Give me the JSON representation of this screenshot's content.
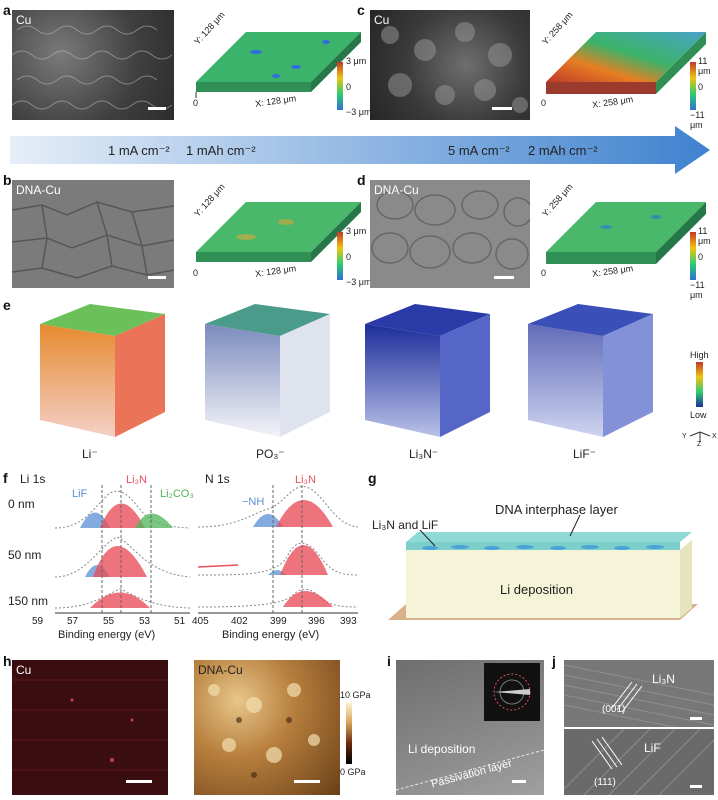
{
  "panels": {
    "a": {
      "label": "a",
      "sem_label": "Cu",
      "y_label": "Y: 128 μm",
      "x_label": "X: 128 μm",
      "origin": "0",
      "scale_max": "3 μm",
      "scale_mid": "0",
      "scale_min": "−3 μm"
    },
    "b": {
      "label": "b",
      "sem_label": "DNA-Cu",
      "y_label": "Y: 128 μm",
      "x_label": "X: 128 μm",
      "origin": "0",
      "scale_max": "3 μm",
      "scale_mid": "0",
      "scale_min": "−3 μm"
    },
    "c": {
      "label": "c",
      "sem_label": "Cu",
      "y_label": "Y: 258 μm",
      "x_label": "X: 258 μm",
      "origin": "0",
      "scale_max": "11 μm",
      "scale_mid": "0",
      "scale_min": "−11 μm"
    },
    "d": {
      "label": "d",
      "sem_label": "DNA-Cu",
      "y_label": "Y: 258 μm",
      "x_label": "X: 258 μm",
      "origin": "0",
      "scale_max": "11 μm",
      "scale_mid": "0",
      "scale_min": "−11 μm"
    },
    "e": {
      "label": "e",
      "cubes": [
        "Li⁻",
        "PO₃⁻",
        "Li₃N⁻",
        "LiF⁻"
      ],
      "scale_high": "High",
      "scale_low": "Low",
      "axes": {
        "y": "Y",
        "z": "Z",
        "x": "X"
      }
    },
    "f": {
      "label": "f",
      "li_title": "Li 1s",
      "n_title": "N 1s",
      "depths": [
        "0 nm",
        "50 nm",
        "150 nm"
      ],
      "li_peaks": {
        "lif": "LiF",
        "li3n": "Li₃N",
        "li2co3": "Li₂CO₃"
      },
      "n_peaks": {
        "nh": "−NH",
        "li3n": "Li₃N"
      },
      "li_ticks": [
        "59",
        "57",
        "55",
        "53",
        "51"
      ],
      "n_ticks": [
        "405",
        "402",
        "399",
        "396",
        "393"
      ],
      "xlabel": "Binding energy (eV)"
    },
    "g": {
      "label": "g",
      "dna": "DNA interphase layer",
      "li3n_lif": "Li₃N and LiF",
      "li_dep": "Li deposition"
    },
    "h": {
      "label": "h",
      "left": "Cu",
      "right": "DNA-Cu",
      "scale_max": "10 GPa",
      "scale_min": "0 GPa"
    },
    "i": {
      "label": "i",
      "li_dep": "Li deposition",
      "passivation": "Passivation layer"
    },
    "j": {
      "label": "j",
      "top": "Li₃N",
      "top_plane": "(001)",
      "bottom": "LiF",
      "bottom_plane": "(111)"
    }
  },
  "arrow": {
    "cond1a": "1 mA cm⁻²",
    "cond1b": "1 mAh cm⁻²",
    "cond2a": "5 mA cm⁻²",
    "cond2b": "2 mAh cm⁻²"
  },
  "colors": {
    "li3n": "#e8505b",
    "lif": "#5b8fd6",
    "li2co3": "#4db35a",
    "arrow_start": "#e6eef8",
    "arrow_end": "#3f82cf"
  }
}
